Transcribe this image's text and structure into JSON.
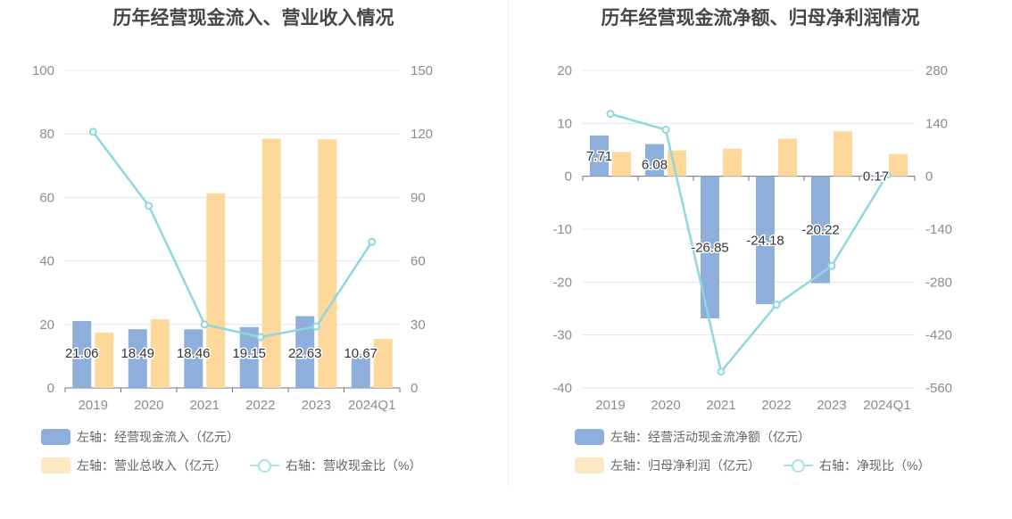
{
  "left": {
    "title": "历年经营现金流入、营业收入情况",
    "legend": [
      {
        "label": "左轴：经营现金流入（亿元）",
        "kind": "bar"
      },
      {
        "label": "左轴：营业总收入（亿元）",
        "kind": "bar"
      },
      {
        "label": "右轴：营收现金比（%）",
        "kind": "line"
      }
    ]
  },
  "right": {
    "title": "历年经营现金流净额、归母净利润情况",
    "legend": [
      {
        "label": "左轴：经营活动现金流净额（亿元）",
        "kind": "bar"
      },
      {
        "label": "左轴：归母净利润（亿元）",
        "kind": "bar"
      },
      {
        "label": "右轴：净现比（%）",
        "kind": "line"
      }
    ]
  },
  "chart_data": [
    {
      "type": "bar",
      "title": "历年经营现金流入、营业收入情况",
      "categories": [
        "2019",
        "2020",
        "2021",
        "2022",
        "2023",
        "2024Q1"
      ],
      "ylim_left": [
        0,
        100
      ],
      "yticks_left": [
        0,
        20,
        40,
        60,
        80,
        100
      ],
      "ylim_right": [
        0,
        150
      ],
      "yticks_right": [
        0,
        30,
        60,
        90,
        120,
        150
      ],
      "grid": true,
      "legend_position": "bottom-left",
      "series": [
        {
          "name": "左轴：经营现金流入（亿元）",
          "type": "bar",
          "axis": "left",
          "color": "#8eaedc",
          "values": [
            21.06,
            18.49,
            18.46,
            19.15,
            22.63,
            10.67
          ],
          "labels": [
            "21.06",
            "18.49",
            "18.46",
            "19.15",
            "22.63",
            "10.67"
          ]
        },
        {
          "name": "左轴：营业总收入（亿元）",
          "type": "bar",
          "axis": "left",
          "color": "#fdd89a",
          "values": [
            17.4,
            21.6,
            61.3,
            78.5,
            78.3,
            15.4
          ]
        },
        {
          "name": "右轴：营收现金比（%）",
          "type": "line",
          "axis": "right",
          "color": "#8dd8dc",
          "values": [
            121,
            86,
            30,
            24,
            29,
            69
          ]
        }
      ]
    },
    {
      "type": "bar",
      "title": "历年经营现金流净额、归母净利润情况",
      "categories": [
        "2019",
        "2020",
        "2021",
        "2022",
        "2023",
        "2024Q1"
      ],
      "ylim_left": [
        -40,
        20
      ],
      "yticks_left": [
        -40,
        -30,
        -20,
        -10,
        0,
        10,
        20
      ],
      "ylim_right": [
        -560,
        280
      ],
      "yticks_right": [
        -560,
        -420,
        -280,
        -140,
        0,
        140,
        280
      ],
      "grid": true,
      "legend_position": "bottom-left",
      "series": [
        {
          "name": "左轴：经营活动现金流净额（亿元）",
          "type": "bar",
          "axis": "left",
          "color": "#8eaedc",
          "values": [
            7.71,
            6.08,
            -26.85,
            -24.18,
            -20.22,
            0.17
          ],
          "labels": [
            "7.71",
            "6.08",
            "-26.85",
            "-24.18",
            "-20.22",
            "0.17"
          ]
        },
        {
          "name": "左轴：归母净利润（亿元）",
          "type": "bar",
          "axis": "left",
          "color": "#fdd89a",
          "values": [
            4.6,
            4.9,
            5.2,
            7.1,
            8.5,
            4.2
          ]
        },
        {
          "name": "右轴：净现比（%）",
          "type": "line",
          "axis": "right",
          "color": "#8dd8dc",
          "values": [
            165,
            123,
            -517,
            -340,
            -237,
            4
          ]
        }
      ]
    }
  ]
}
